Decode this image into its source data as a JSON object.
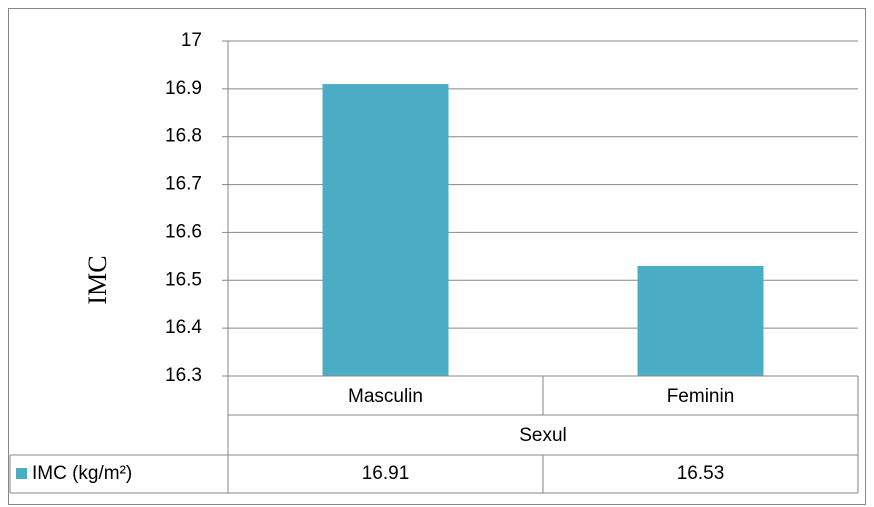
{
  "chart_data": {
    "type": "bar",
    "y_label": "IMC",
    "x_label": "Sexul",
    "categories": [
      "Masculin",
      "Feminin"
    ],
    "series": [
      {
        "name": "IMC (kg/m²)",
        "color": "#4bacc6",
        "values": [
          16.91,
          16.53
        ]
      }
    ],
    "ylim": [
      16.3,
      17
    ],
    "yticks": [
      16.3,
      16.4,
      16.5,
      16.6,
      16.7,
      16.8,
      16.9,
      17
    ],
    "grid": true
  }
}
